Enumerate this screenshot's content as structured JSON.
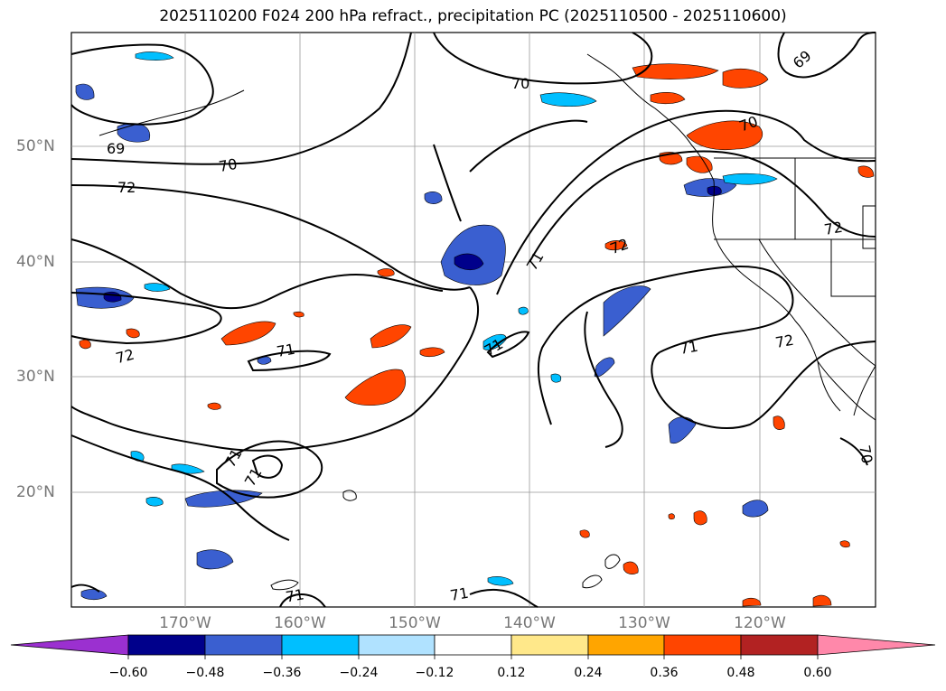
{
  "title": "2025110200 F024 200 hPa refract., precipitation PC (2025110500 - 2025110600)",
  "lat_labels": [
    "50°N",
    "40°N",
    "30°N",
    "20°N"
  ],
  "lon_labels": [
    "170°W",
    "160°W",
    "150°W",
    "140°W",
    "130°W",
    "120°W"
  ],
  "contour_labels": [
    "69",
    "70",
    "72",
    "70",
    "71",
    "72",
    "71",
    "71",
    "72",
    "71",
    "70",
    "71",
    "72",
    "71",
    "69",
    "70",
    "71",
    "71",
    "72"
  ],
  "colorbar": {
    "ticks": [
      "−0.60",
      "−0.48",
      "−0.36",
      "−0.24",
      "−0.12",
      "0.12",
      "0.24",
      "0.36",
      "0.48",
      "0.60"
    ],
    "colors": [
      "#9b30d0",
      "#00008b",
      "#3a5fd0",
      "#00bfff",
      "#b0e2ff",
      "#ffffff",
      "#ffe88a",
      "#ffa500",
      "#ff4500",
      "#b22222",
      "#ff88aa"
    ]
  }
}
